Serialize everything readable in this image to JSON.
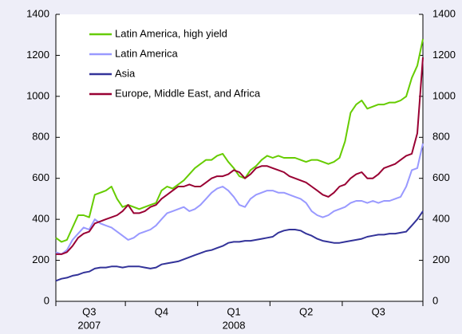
{
  "chart_data": {
    "type": "line",
    "categories": [
      null,
      null,
      null,
      null,
      null,
      null,
      "Q3",
      null,
      null,
      null,
      null,
      null,
      null,
      null,
      null,
      null,
      null,
      null,
      null,
      "Q4",
      null,
      null,
      null,
      null,
      null,
      null,
      null,
      null,
      null,
      null,
      null,
      null,
      "Q1",
      null,
      null,
      null,
      null,
      null,
      null,
      null,
      null,
      null,
      null,
      null,
      null,
      "Q2",
      null,
      null,
      null,
      null,
      null,
      null,
      null,
      null,
      null,
      null,
      null,
      null,
      "Q3",
      null,
      null,
      null,
      null,
      null,
      null,
      null,
      null
    ],
    "category_years": [
      null,
      null,
      null,
      null,
      null,
      null,
      "2007",
      null,
      null,
      null,
      null,
      null,
      null,
      null,
      null,
      null,
      null,
      null,
      null,
      null,
      null,
      null,
      null,
      null,
      null,
      null,
      null,
      null,
      null,
      null,
      null,
      null,
      "2008",
      null,
      null,
      null,
      null,
      null,
      null,
      null,
      null,
      null,
      null,
      null,
      null,
      null,
      null,
      null,
      null,
      null,
      null,
      null,
      null,
      null,
      null,
      null,
      null,
      null,
      null,
      null,
      null,
      null,
      null,
      null,
      null,
      null,
      null
    ],
    "series": [
      {
        "name": "Latin America, high yield",
        "color": "#66cc00",
        "values": [
          310,
          290,
          300,
          360,
          420,
          420,
          410,
          520,
          530,
          540,
          560,
          500,
          460,
          470,
          460,
          450,
          460,
          470,
          480,
          540,
          560,
          550,
          570,
          590,
          620,
          650,
          670,
          690,
          690,
          710,
          720,
          680,
          650,
          610,
          600,
          640,
          660,
          690,
          710,
          700,
          710,
          700,
          700,
          700,
          690,
          680,
          690,
          690,
          680,
          670,
          680,
          700,
          780,
          920,
          960,
          980,
          940,
          950,
          960,
          960,
          970,
          970,
          980,
          1000,
          1090,
          1150,
          1280
        ]
      },
      {
        "name": "Latin America",
        "color": "#9999ff",
        "values": [
          240,
          230,
          250,
          300,
          330,
          360,
          350,
          400,
          380,
          370,
          360,
          340,
          320,
          300,
          310,
          330,
          340,
          350,
          370,
          400,
          430,
          440,
          450,
          460,
          440,
          450,
          470,
          500,
          530,
          550,
          560,
          540,
          510,
          470,
          460,
          500,
          520,
          530,
          540,
          540,
          530,
          530,
          520,
          510,
          500,
          480,
          440,
          420,
          410,
          420,
          440,
          450,
          460,
          480,
          490,
          490,
          480,
          490,
          480,
          490,
          490,
          500,
          510,
          560,
          640,
          650,
          770
        ]
      },
      {
        "name": "Asia",
        "color": "#333399",
        "values": [
          100,
          110,
          115,
          125,
          130,
          140,
          145,
          160,
          165,
          165,
          170,
          170,
          165,
          170,
          170,
          170,
          165,
          160,
          165,
          180,
          185,
          190,
          195,
          205,
          215,
          225,
          235,
          245,
          250,
          260,
          270,
          285,
          290,
          290,
          295,
          295,
          300,
          305,
          310,
          315,
          335,
          345,
          350,
          350,
          345,
          330,
          320,
          305,
          295,
          290,
          285,
          285,
          290,
          295,
          300,
          305,
          315,
          320,
          325,
          325,
          330,
          330,
          335,
          340,
          370,
          400,
          440
        ]
      },
      {
        "name": "Europe, Middle East, and Africa",
        "color": "#990033",
        "values": [
          230,
          230,
          240,
          270,
          310,
          330,
          340,
          380,
          390,
          400,
          410,
          420,
          440,
          470,
          430,
          430,
          440,
          460,
          470,
          500,
          520,
          540,
          560,
          560,
          570,
          560,
          560,
          580,
          600,
          610,
          610,
          620,
          640,
          630,
          600,
          620,
          650,
          660,
          660,
          650,
          640,
          630,
          610,
          600,
          590,
          580,
          560,
          540,
          520,
          510,
          530,
          560,
          570,
          600,
          620,
          630,
          600,
          600,
          620,
          650,
          660,
          670,
          690,
          710,
          720,
          820,
          1190
        ]
      }
    ],
    "ylim": [
      0,
      1400
    ],
    "yticks": [
      0,
      200,
      400,
      600,
      800,
      1000,
      1200,
      1400
    ],
    "y2lim": [
      0,
      1400
    ],
    "y2ticks": [
      0,
      200,
      400,
      600,
      800,
      1000,
      1200,
      1400
    ],
    "legend": "upper-left"
  }
}
